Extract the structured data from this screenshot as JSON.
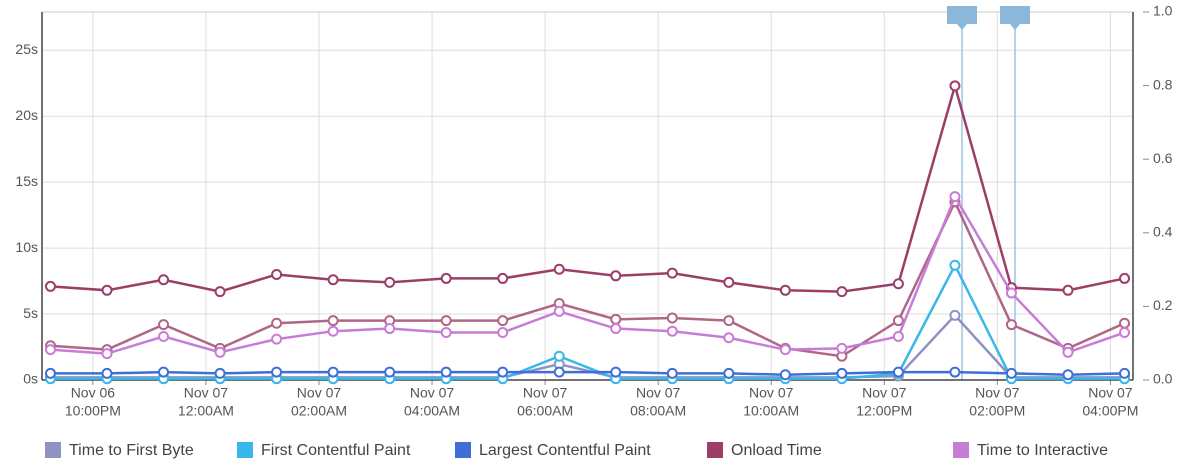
{
  "chart_data": {
    "type": "line",
    "x": [
      21.25,
      22.25,
      23.25,
      24.25,
      25.25,
      26.25,
      27.25,
      28.25,
      29.25,
      30.25,
      31.25,
      32.25,
      33.25,
      34.25,
      35.25,
      36.25,
      37.25,
      38.25,
      39.25,
      40.25
    ],
    "xlim": [
      21.1,
      40.4
    ],
    "xticks": [
      {
        "value": 22,
        "label": [
          "Nov 06",
          "10:00PM"
        ]
      },
      {
        "value": 24,
        "label": [
          "Nov 07",
          "12:00AM"
        ]
      },
      {
        "value": 26,
        "label": [
          "Nov 07",
          "02:00AM"
        ]
      },
      {
        "value": 28,
        "label": [
          "Nov 07",
          "04:00AM"
        ]
      },
      {
        "value": 30,
        "label": [
          "Nov 07",
          "06:00AM"
        ]
      },
      {
        "value": 32,
        "label": [
          "Nov 07",
          "08:00AM"
        ]
      },
      {
        "value": 34,
        "label": [
          "Nov 07",
          "10:00AM"
        ]
      },
      {
        "value": 36,
        "label": [
          "Nov 07",
          "12:00PM"
        ]
      },
      {
        "value": 38,
        "label": [
          "Nov 07",
          "02:00PM"
        ]
      },
      {
        "value": 40,
        "label": [
          "Nov 07",
          "04:00PM"
        ]
      }
    ],
    "ylim": [
      0,
      27.9
    ],
    "yticks": [
      {
        "value": 0,
        "label": "0s"
      },
      {
        "value": 5,
        "label": "5s"
      },
      {
        "value": 10,
        "label": "10s"
      },
      {
        "value": 15,
        "label": "15s"
      },
      {
        "value": 20,
        "label": "20s"
      },
      {
        "value": 25,
        "label": "25s"
      }
    ],
    "y2lim": [
      0,
      1
    ],
    "y2ticks": [
      {
        "value": 0,
        "label": "0.0"
      },
      {
        "value": 0.2,
        "label": "0.2"
      },
      {
        "value": 0.4,
        "label": "0.4"
      },
      {
        "value": 0.6,
        "label": "0.6"
      },
      {
        "value": 0.8,
        "label": "0.8"
      },
      {
        "value": 1,
        "label": "1.0"
      }
    ],
    "grid": true,
    "series": [
      {
        "name": "Time to First Byte",
        "color": "#8f93c4",
        "values": [
          0.2,
          0.2,
          0.2,
          0.2,
          0.2,
          0.2,
          0.2,
          0.2,
          0.2,
          1.2,
          0.2,
          0.2,
          0.2,
          0.2,
          0.2,
          0.3,
          4.9,
          0.2,
          0.2,
          0.2
        ]
      },
      {
        "name": "First Contentful Paint",
        "color": "#3ab7ea",
        "values": [
          0.1,
          0.1,
          0.1,
          0.1,
          0.1,
          0.1,
          0.1,
          0.1,
          0.1,
          1.8,
          0.1,
          0.1,
          0.1,
          0.1,
          0.1,
          0.5,
          8.7,
          0.1,
          0.1,
          0.1
        ]
      },
      {
        "name": "Largest Contentful Paint",
        "color": "#3f6fd6",
        "values": [
          0.5,
          0.5,
          0.6,
          0.5,
          0.6,
          0.6,
          0.6,
          0.6,
          0.6,
          0.6,
          0.6,
          0.5,
          0.5,
          0.4,
          0.5,
          0.6,
          0.6,
          0.5,
          0.4,
          0.5
        ]
      },
      {
        "name": "Onload Time",
        "color": "#9b3e68",
        "values": [
          7.1,
          6.8,
          7.6,
          6.7,
          8.0,
          7.6,
          7.4,
          7.7,
          7.7,
          8.4,
          7.9,
          8.1,
          7.4,
          6.8,
          6.7,
          7.3,
          22.3,
          7.0,
          6.8,
          7.7
        ]
      },
      {
        "name": null,
        "color": "#b06686",
        "values": [
          2.6,
          2.3,
          4.2,
          2.4,
          4.3,
          4.5,
          4.5,
          4.5,
          4.5,
          5.8,
          4.6,
          4.7,
          4.5,
          2.4,
          1.8,
          4.5,
          13.5,
          4.2,
          2.4,
          4.3
        ]
      },
      {
        "name": "Time to Interactive",
        "color": "#c77dd6",
        "values": [
          2.3,
          2.0,
          3.3,
          2.1,
          3.1,
          3.7,
          3.9,
          3.6,
          3.6,
          5.2,
          3.9,
          3.7,
          3.2,
          2.3,
          2.4,
          3.3,
          13.9,
          6.6,
          2.1,
          3.6
        ]
      }
    ],
    "legend": "bottom"
  }
}
